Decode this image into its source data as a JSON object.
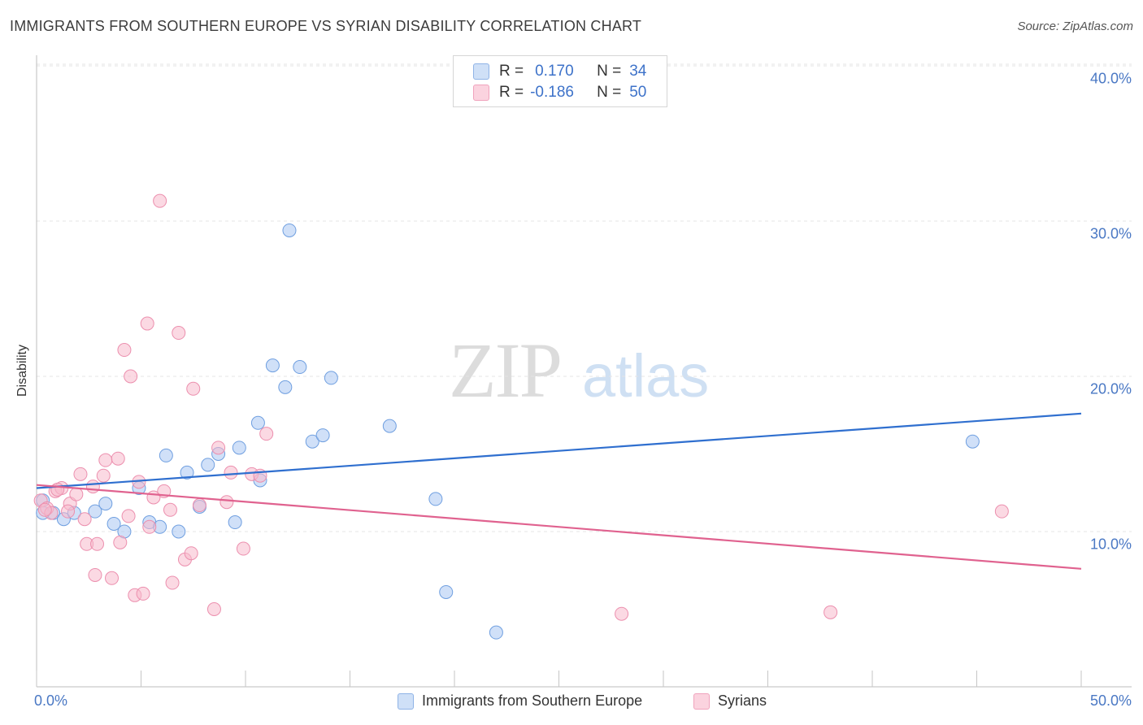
{
  "header": {
    "title": "IMMIGRANTS FROM SOUTHERN EUROPE VS SYRIAN DISABILITY CORRELATION CHART",
    "source": "Source: ZipAtlas.com"
  },
  "watermark": {
    "part1": "ZIP",
    "part2": "atlas"
  },
  "legend_box": {
    "rows": [
      {
        "r_label": "R =",
        "r_value": "0.170",
        "n_label": "N =",
        "n_value": "34",
        "color": "#a9c7f2"
      },
      {
        "r_label": "R =",
        "r_value": "-0.186",
        "n_label": "N =",
        "n_value": "50",
        "color": "#f7b9cc"
      }
    ]
  },
  "bottom_legend": {
    "series1": "Immigrants from Southern Europe",
    "series2": "Syrians"
  },
  "chart_data": {
    "type": "scatter",
    "title": "IMMIGRANTS FROM SOUTHERN EUROPE VS SYRIAN DISABILITY CORRELATION CHART",
    "xlabel": "",
    "ylabel": "Disability",
    "xlim": [
      0,
      50
    ],
    "ylim": [
      0,
      40
    ],
    "x_tick_labels": [
      "0.0%",
      "50.0%"
    ],
    "y_ticks": [
      10,
      20,
      30,
      40
    ],
    "y_tick_labels": [
      "10.0%",
      "20.0%",
      "30.0%",
      "40.0%"
    ],
    "grid": "horizontal dashed",
    "legend_position": "top-center",
    "series": [
      {
        "name": "Immigrants from Southern Europe",
        "color": "#a9c7f2",
        "stroke": "#6f9fe0",
        "trend_color": "#2f6fcf",
        "trend": {
          "x": [
            0,
            50
          ],
          "y": [
            12.8,
            17.6
          ]
        },
        "points": [
          [
            0.3,
            12.0
          ],
          [
            0.8,
            11.2
          ],
          [
            1.3,
            10.8
          ],
          [
            1.8,
            11.2
          ],
          [
            2.8,
            11.3
          ],
          [
            3.3,
            11.8
          ],
          [
            3.7,
            10.5
          ],
          [
            4.2,
            10.0
          ],
          [
            4.9,
            12.8
          ],
          [
            5.4,
            10.6
          ],
          [
            5.9,
            10.3
          ],
          [
            6.2,
            14.9
          ],
          [
            6.8,
            10.0
          ],
          [
            7.2,
            13.8
          ],
          [
            7.8,
            11.6
          ],
          [
            8.2,
            14.3
          ],
          [
            8.7,
            15.0
          ],
          [
            9.5,
            10.6
          ],
          [
            9.7,
            15.4
          ],
          [
            10.6,
            17.0
          ],
          [
            10.7,
            13.3
          ],
          [
            11.3,
            20.7
          ],
          [
            11.9,
            19.3
          ],
          [
            12.1,
            29.4
          ],
          [
            12.6,
            20.6
          ],
          [
            13.2,
            15.8
          ],
          [
            13.7,
            16.2
          ],
          [
            14.1,
            19.9
          ],
          [
            16.9,
            16.8
          ],
          [
            19.1,
            12.1
          ],
          [
            19.6,
            6.1
          ],
          [
            22.0,
            3.5
          ],
          [
            44.8,
            15.8
          ],
          [
            0.3,
            11.2
          ]
        ]
      },
      {
        "name": "Syrians",
        "color": "#f7b9cc",
        "stroke": "#ec8fae",
        "trend_color": "#e0628f",
        "trend": {
          "x": [
            0,
            50
          ],
          "y": [
            13.0,
            7.6
          ]
        },
        "points": [
          [
            0.2,
            12.0
          ],
          [
            0.5,
            11.5
          ],
          [
            0.7,
            11.2
          ],
          [
            0.9,
            12.6
          ],
          [
            1.2,
            12.8
          ],
          [
            1.6,
            11.8
          ],
          [
            1.9,
            12.4
          ],
          [
            2.1,
            13.7
          ],
          [
            2.3,
            10.8
          ],
          [
            2.4,
            9.2
          ],
          [
            2.7,
            12.9
          ],
          [
            2.8,
            7.2
          ],
          [
            2.9,
            9.2
          ],
          [
            3.2,
            13.6
          ],
          [
            3.3,
            14.6
          ],
          [
            3.6,
            7.0
          ],
          [
            3.9,
            14.7
          ],
          [
            4.0,
            9.3
          ],
          [
            4.2,
            21.7
          ],
          [
            4.4,
            11.0
          ],
          [
            4.5,
            20.0
          ],
          [
            4.7,
            5.9
          ],
          [
            4.9,
            13.2
          ],
          [
            5.1,
            6.0
          ],
          [
            5.3,
            23.4
          ],
          [
            5.4,
            10.3
          ],
          [
            5.6,
            12.2
          ],
          [
            5.9,
            31.3
          ],
          [
            6.1,
            12.6
          ],
          [
            6.4,
            11.4
          ],
          [
            6.5,
            6.7
          ],
          [
            6.8,
            22.8
          ],
          [
            7.1,
            8.2
          ],
          [
            7.4,
            8.6
          ],
          [
            7.5,
            19.2
          ],
          [
            7.8,
            11.7
          ],
          [
            8.5,
            5.0
          ],
          [
            8.7,
            15.4
          ],
          [
            9.1,
            11.9
          ],
          [
            9.3,
            13.8
          ],
          [
            9.9,
            8.9
          ],
          [
            10.3,
            13.7
          ],
          [
            10.7,
            13.6
          ],
          [
            11.0,
            16.3
          ],
          [
            28.0,
            4.7
          ],
          [
            38.0,
            4.8
          ],
          [
            46.2,
            11.3
          ],
          [
            0.4,
            11.4
          ],
          [
            1.0,
            12.7
          ],
          [
            1.5,
            11.3
          ]
        ]
      }
    ]
  }
}
